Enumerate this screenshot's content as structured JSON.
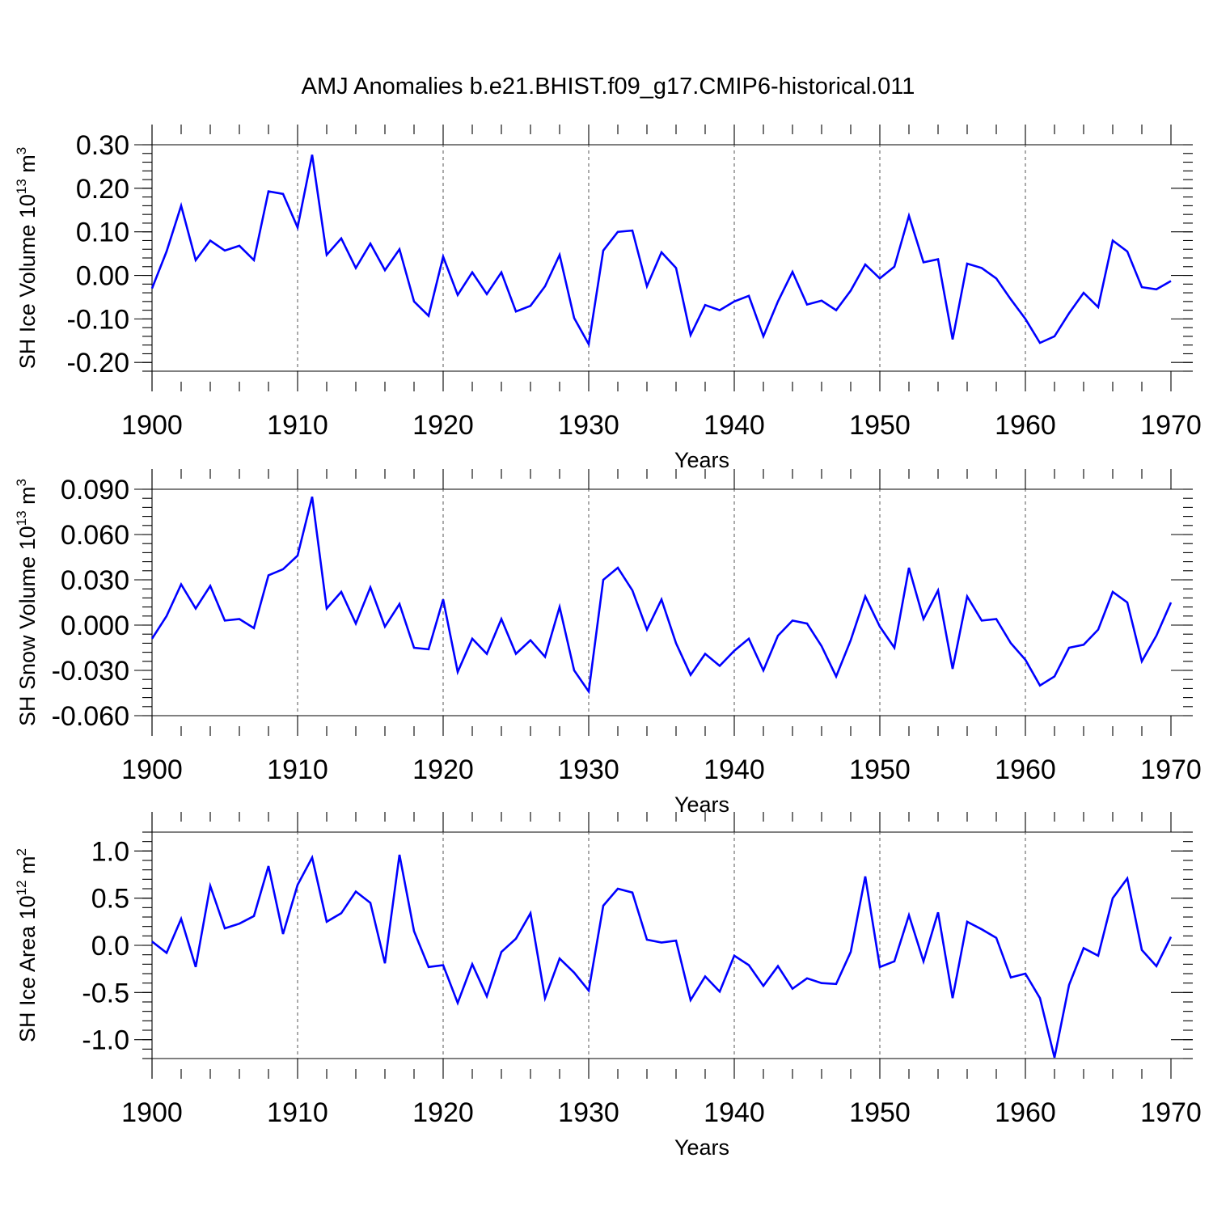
{
  "title": "AMJ Anomalies b.e21.BHIST.f09_g17.CMIP6-historical.011",
  "chart_data": [
    {
      "type": "line",
      "ylabel": "SH Ice Volume 10",
      "ylabel_exp": "13",
      "ylabel_unit": " m",
      "ylabel_unit_exp": "3",
      "xlabel": "Years",
      "xlim": [
        1900,
        1970
      ],
      "ylim": [
        -0.22,
        0.3
      ],
      "xticks": [
        1900,
        1910,
        1920,
        1930,
        1940,
        1950,
        1960,
        1970
      ],
      "yticks": [
        -0.2,
        -0.1,
        0.0,
        0.1,
        0.2,
        0.3
      ],
      "ytick_labels": [
        "-0.20",
        "-0.10",
        "0.00",
        "0.10",
        "0.20",
        "0.30"
      ],
      "grid": "dashed vertical at decades",
      "color": "#0000ff",
      "x": [
        1900,
        1901,
        1902,
        1903,
        1904,
        1905,
        1906,
        1907,
        1908,
        1909,
        1910,
        1911,
        1912,
        1913,
        1914,
        1915,
        1916,
        1917,
        1918,
        1919,
        1920,
        1921,
        1922,
        1923,
        1924,
        1925,
        1926,
        1927,
        1928,
        1929,
        1930,
        1931,
        1932,
        1933,
        1934,
        1935,
        1936,
        1937,
        1938,
        1939,
        1940,
        1941,
        1942,
        1943,
        1944,
        1945,
        1946,
        1947,
        1948,
        1949,
        1950,
        1951,
        1952,
        1953,
        1954,
        1955,
        1956,
        1957,
        1958,
        1959,
        1960,
        1961,
        1962,
        1963,
        1964,
        1965,
        1966,
        1967,
        1968,
        1969,
        1970
      ],
      "y": [
        -0.03,
        0.055,
        0.16,
        0.035,
        0.08,
        0.057,
        0.068,
        0.035,
        0.193,
        0.187,
        0.11,
        0.277,
        0.047,
        0.085,
        0.017,
        0.073,
        0.012,
        0.06,
        -0.06,
        -0.093,
        0.043,
        -0.045,
        0.007,
        -0.043,
        0.007,
        -0.083,
        -0.07,
        -0.025,
        0.047,
        -0.098,
        -0.158,
        0.057,
        0.1,
        0.103,
        -0.025,
        0.053,
        0.017,
        -0.137,
        -0.068,
        -0.08,
        -0.06,
        -0.047,
        -0.14,
        -0.06,
        0.008,
        -0.067,
        -0.058,
        -0.08,
        -0.035,
        0.025,
        -0.007,
        0.02,
        0.137,
        0.03,
        0.037,
        -0.147,
        0.027,
        0.017,
        -0.007,
        -0.055,
        -0.1,
        -0.155,
        -0.14,
        -0.087,
        -0.04,
        -0.073,
        0.08,
        0.055,
        -0.027,
        -0.032,
        -0.013
      ]
    },
    {
      "type": "line",
      "ylabel": "SH Snow Volume 10",
      "ylabel_exp": "13",
      "ylabel_unit": " m",
      "ylabel_unit_exp": "3",
      "xlabel": "Years",
      "xlim": [
        1900,
        1970
      ],
      "ylim": [
        -0.06,
        0.09
      ],
      "xticks": [
        1900,
        1910,
        1920,
        1930,
        1940,
        1950,
        1960,
        1970
      ],
      "yticks": [
        -0.06,
        -0.03,
        0.0,
        0.03,
        0.06,
        0.09
      ],
      "ytick_labels": [
        "-0.060",
        "-0.030",
        "0.000",
        "0.030",
        "0.060",
        "0.090"
      ],
      "grid": "dashed vertical at decades",
      "color": "#0000ff",
      "x": [
        1900,
        1901,
        1902,
        1903,
        1904,
        1905,
        1906,
        1907,
        1908,
        1909,
        1910,
        1911,
        1912,
        1913,
        1914,
        1915,
        1916,
        1917,
        1918,
        1919,
        1920,
        1921,
        1922,
        1923,
        1924,
        1925,
        1926,
        1927,
        1928,
        1929,
        1930,
        1931,
        1932,
        1933,
        1934,
        1935,
        1936,
        1937,
        1938,
        1939,
        1940,
        1941,
        1942,
        1943,
        1944,
        1945,
        1946,
        1947,
        1948,
        1949,
        1950,
        1951,
        1952,
        1953,
        1954,
        1955,
        1956,
        1957,
        1958,
        1959,
        1960,
        1961,
        1962,
        1963,
        1964,
        1965,
        1966,
        1967,
        1968,
        1969,
        1970
      ],
      "y": [
        -0.009,
        0.006,
        0.027,
        0.011,
        0.026,
        0.003,
        0.004,
        -0.002,
        0.033,
        0.037,
        0.046,
        0.085,
        0.011,
        0.022,
        0.001,
        0.025,
        -0.001,
        0.014,
        -0.015,
        -0.016,
        0.017,
        -0.031,
        -0.009,
        -0.019,
        0.004,
        -0.019,
        -0.01,
        -0.021,
        0.012,
        -0.03,
        -0.044,
        0.03,
        0.038,
        0.023,
        -0.003,
        0.017,
        -0.012,
        -0.033,
        -0.019,
        -0.027,
        -0.017,
        -0.009,
        -0.03,
        -0.007,
        0.003,
        0.001,
        -0.014,
        -0.034,
        -0.01,
        0.019,
        -0.001,
        -0.015,
        0.038,
        0.004,
        0.023,
        -0.029,
        0.019,
        0.003,
        0.004,
        -0.012,
        -0.023,
        -0.04,
        -0.034,
        -0.015,
        -0.013,
        -0.003,
        0.022,
        0.015,
        -0.024,
        -0.007,
        0.015
      ]
    },
    {
      "type": "line",
      "ylabel": "SH Ice Area 10",
      "ylabel_exp": "12",
      "ylabel_unit": " m",
      "ylabel_unit_exp": "2",
      "xlabel": "Years",
      "xlim": [
        1900,
        1970
      ],
      "ylim": [
        -1.2,
        1.2
      ],
      "xticks": [
        1900,
        1910,
        1920,
        1930,
        1940,
        1950,
        1960,
        1970
      ],
      "yticks": [
        -1.0,
        -0.5,
        0.0,
        0.5,
        1.0
      ],
      "ytick_labels": [
        "-1.0",
        "-0.5",
        "0.0",
        "0.5",
        "1.0"
      ],
      "grid": "dashed vertical at decades",
      "color": "#0000ff",
      "x": [
        1900,
        1901,
        1902,
        1903,
        1904,
        1905,
        1906,
        1907,
        1908,
        1909,
        1910,
        1911,
        1912,
        1913,
        1914,
        1915,
        1916,
        1917,
        1918,
        1919,
        1920,
        1921,
        1922,
        1923,
        1924,
        1925,
        1926,
        1927,
        1928,
        1929,
        1930,
        1931,
        1932,
        1933,
        1934,
        1935,
        1936,
        1937,
        1938,
        1939,
        1940,
        1941,
        1942,
        1943,
        1944,
        1945,
        1946,
        1947,
        1948,
        1949,
        1950,
        1951,
        1952,
        1953,
        1954,
        1955,
        1956,
        1957,
        1958,
        1959,
        1960,
        1961,
        1962,
        1963,
        1964,
        1965,
        1966,
        1967,
        1968,
        1969,
        1970
      ],
      "y": [
        0.04,
        -0.08,
        0.28,
        -0.23,
        0.63,
        0.18,
        0.23,
        0.31,
        0.84,
        0.12,
        0.64,
        0.93,
        0.25,
        0.34,
        0.57,
        0.45,
        -0.19,
        0.96,
        0.15,
        -0.23,
        -0.21,
        -0.61,
        -0.2,
        -0.54,
        -0.07,
        0.07,
        0.34,
        -0.56,
        -0.14,
        -0.29,
        -0.48,
        0.42,
        0.6,
        0.56,
        0.06,
        0.03,
        0.05,
        -0.58,
        -0.33,
        -0.49,
        -0.11,
        -0.21,
        -0.43,
        -0.22,
        -0.46,
        -0.35,
        -0.4,
        -0.41,
        -0.07,
        0.73,
        -0.23,
        -0.17,
        0.32,
        -0.17,
        0.35,
        -0.56,
        0.25,
        0.17,
        0.08,
        -0.34,
        -0.3,
        -0.56,
        -1.19,
        -0.42,
        -0.03,
        -0.11,
        0.5,
        0.71,
        -0.05,
        -0.22,
        0.09
      ]
    }
  ]
}
